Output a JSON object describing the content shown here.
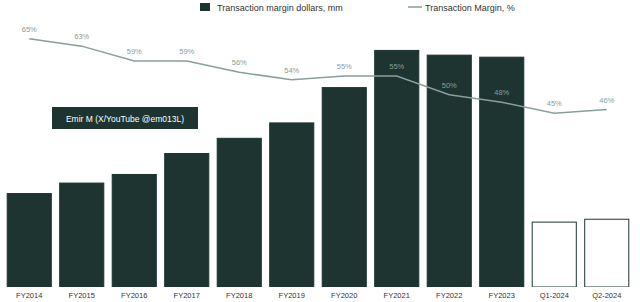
{
  "chart_data": {
    "type": "bar",
    "categories": [
      "FY2014",
      "FY2015",
      "FY2016",
      "FY2017",
      "FY2018",
      "FY2019",
      "FY2020",
      "FY2021",
      "FY2022",
      "FY2023",
      "Q1-2024",
      "Q2-2024"
    ],
    "series": [
      {
        "name": "Transaction margin dollars, mm",
        "type": "bar",
        "colors": [
          "#1d3430",
          "#1d3430",
          "#1d3430",
          "#1d3430",
          "#1d3430",
          "#1d3430",
          "#1d3430",
          "#1d3430",
          "#1d3430",
          "#1d3430",
          "#ffffff",
          "#ffffff"
        ],
        "values": [
          5530,
          6150,
          6660,
          7900,
          8800,
          9710,
          11800,
          14000,
          13720,
          13600,
          3840,
          4010
        ]
      },
      {
        "name": "Transaction Margin, %",
        "type": "line",
        "axis": "y2",
        "color": "#8a9e9b",
        "data_labels": true,
        "values": [
          65,
          63,
          59,
          59,
          56,
          54,
          55,
          55,
          50,
          48,
          45,
          46
        ],
        "value_labels": [
          "65%",
          "63%",
          "59%",
          "59%",
          "56%",
          "54%",
          "55%",
          "55%",
          "50%",
          "48%",
          "45%",
          "46%"
        ]
      }
    ],
    "ylim": [
      0,
      15800
    ],
    "y2lim": [
      -1.5,
      70
    ],
    "tick_labels": "x",
    "grid": false,
    "legend": "top",
    "annotation": "Emir M (X/YouTube @em013L)"
  }
}
